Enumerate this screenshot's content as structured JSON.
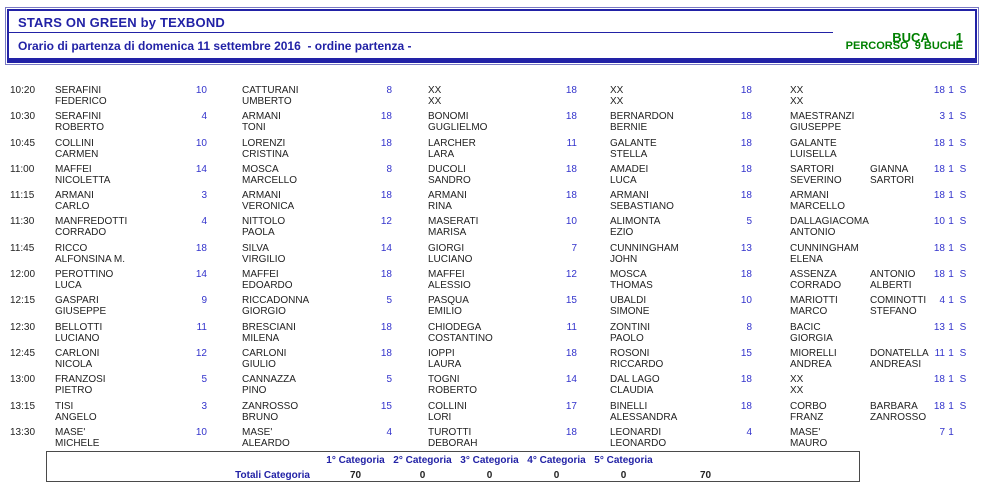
{
  "header": {
    "title": "STARS ON GREEN by TEXBOND",
    "subtitle": "Orario di partenza di domenica 11 settembre 2016  - ordine partenza -",
    "hole_label": "BUCA",
    "hole_number": "1",
    "course_label": "PERCORSO  9 BUCHE"
  },
  "colors": {
    "navy_text": "#2222a6",
    "green_text": "#008000",
    "handicap_blue": "#3333cc",
    "border_navy": "#2222a6"
  },
  "rows": [
    {
      "time": "10:20",
      "players": [
        {
          "s": "SERAFINI",
          "f": "FEDERICO",
          "h": "10"
        },
        {
          "s": "CATTURANI",
          "f": "UMBERTO",
          "h": "8"
        },
        {
          "s": "XX",
          "f": "XX",
          "h": "18"
        },
        {
          "s": "XX",
          "f": "XX",
          "h": "18"
        },
        {
          "s": "XX",
          "f": "XX",
          "h": "18"
        }
      ],
      "m1": "",
      "m2": "",
      "f1": "1",
      "f2": "S"
    },
    {
      "time": "10:30",
      "players": [
        {
          "s": "SERAFINI",
          "f": "ROBERTO",
          "h": "4"
        },
        {
          "s": "ARMANI",
          "f": "TONI",
          "h": "18"
        },
        {
          "s": "BONOMI",
          "f": "GUGLIELMO",
          "h": "18"
        },
        {
          "s": "BERNARDON",
          "f": "BERNIE",
          "h": "18"
        },
        {
          "s": "MAESTRANZI",
          "f": "GIUSEPPE",
          "h": "3"
        }
      ],
      "m1": "",
      "m2": "",
      "f1": "1",
      "f2": "S"
    },
    {
      "time": "10:45",
      "players": [
        {
          "s": "COLLINI",
          "f": "CARMEN",
          "h": "10"
        },
        {
          "s": "LORENZI",
          "f": "CRISTINA",
          "h": "18"
        },
        {
          "s": "LARCHER",
          "f": "LARA",
          "h": "11"
        },
        {
          "s": "GALANTE",
          "f": "STELLA",
          "h": "18"
        },
        {
          "s": "GALANTE",
          "f": "LUISELLA",
          "h": "18"
        }
      ],
      "m1": "",
      "m2": "",
      "f1": "1",
      "f2": "S"
    },
    {
      "time": "11:00",
      "players": [
        {
          "s": "MAFFEI",
          "f": "NICOLETTA",
          "h": "14"
        },
        {
          "s": "MOSCA",
          "f": "MARCELLO",
          "h": "8"
        },
        {
          "s": "DUCOLI",
          "f": "SANDRO",
          "h": "18"
        },
        {
          "s": "AMADEI",
          "f": "LUCA",
          "h": "18"
        },
        {
          "s": "SARTORI",
          "f": "SEVERINO",
          "h": "18"
        }
      ],
      "m1": "GIANNA",
      "m2": "SARTORI",
      "f1": "1",
      "f2": "S"
    },
    {
      "time": "11:15",
      "players": [
        {
          "s": "ARMANI",
          "f": "CARLO",
          "h": "3"
        },
        {
          "s": "ARMANI",
          "f": "VERONICA",
          "h": "18"
        },
        {
          "s": "ARMANI",
          "f": "RINA",
          "h": "18"
        },
        {
          "s": "ARMANI",
          "f": "SEBASTIANO",
          "h": "18"
        },
        {
          "s": "ARMANI",
          "f": "MARCELLO",
          "h": "18"
        }
      ],
      "m1": "",
      "m2": "",
      "f1": "1",
      "f2": "S"
    },
    {
      "time": "11:30",
      "players": [
        {
          "s": "MANFREDOTTI",
          "f": "CORRADO",
          "h": "4"
        },
        {
          "s": "NITTOLO",
          "f": "PAOLA",
          "h": "12"
        },
        {
          "s": "MASERATI",
          "f": "MARISA",
          "h": "10"
        },
        {
          "s": "ALIMONTA",
          "f": "EZIO",
          "h": "5"
        },
        {
          "s": "DALLAGIACOMA",
          "f": "ANTONIO",
          "h": "10"
        }
      ],
      "m1": "",
      "m2": "",
      "f1": "1",
      "f2": "S"
    },
    {
      "time": "11:45",
      "players": [
        {
          "s": "RICCO",
          "f": "ALFONSINA M.",
          "h": "18"
        },
        {
          "s": "SILVA",
          "f": "VIRGILIO",
          "h": "14"
        },
        {
          "s": "GIORGI",
          "f": "LUCIANO",
          "h": "7"
        },
        {
          "s": "CUNNINGHAM",
          "f": "JOHN",
          "h": "13"
        },
        {
          "s": "CUNNINGHAM",
          "f": "ELENA",
          "h": "18"
        }
      ],
      "m1": "",
      "m2": "",
      "f1": "1",
      "f2": "S"
    },
    {
      "time": "12:00",
      "players": [
        {
          "s": "PEROTTINO",
          "f": "LUCA",
          "h": "14"
        },
        {
          "s": "MAFFEI",
          "f": "EDOARDO",
          "h": "18"
        },
        {
          "s": "MAFFEI",
          "f": "ALESSIO",
          "h": "12"
        },
        {
          "s": "MOSCA",
          "f": "THOMAS",
          "h": "18"
        },
        {
          "s": "ASSENZA",
          "f": "CORRADO",
          "h": "18"
        }
      ],
      "m1": "ANTONIO",
      "m2": "ALBERTI",
      "f1": "1",
      "f2": "S"
    },
    {
      "time": "12:15",
      "players": [
        {
          "s": "GASPARI",
          "f": "GIUSEPPE",
          "h": "9"
        },
        {
          "s": "RICCADONNA",
          "f": "GIORGIO",
          "h": "5"
        },
        {
          "s": "PASQUA",
          "f": "EMILIO",
          "h": "15"
        },
        {
          "s": "UBALDI",
          "f": "SIMONE",
          "h": "10"
        },
        {
          "s": "MARIOTTI",
          "f": "MARCO",
          "h": "4"
        }
      ],
      "m1": "COMINOTTI",
      "m2": "STEFANO",
      "f1": "1",
      "f2": "S"
    },
    {
      "time": "12:30",
      "players": [
        {
          "s": "BELLOTTI",
          "f": "LUCIANO",
          "h": "11"
        },
        {
          "s": "BRESCIANI",
          "f": "MILENA",
          "h": "18"
        },
        {
          "s": "CHIODEGA",
          "f": "COSTANTINO",
          "h": "11"
        },
        {
          "s": "ZONTINI",
          "f": "PAOLO",
          "h": "8"
        },
        {
          "s": "BACIC",
          "f": "GIORGIA",
          "h": "13"
        }
      ],
      "m1": "",
      "m2": "",
      "f1": "1",
      "f2": "S"
    },
    {
      "time": "12:45",
      "players": [
        {
          "s": "CARLONI",
          "f": "NICOLA",
          "h": "12"
        },
        {
          "s": "CARLONI",
          "f": "GIULIO",
          "h": "18"
        },
        {
          "s": "IOPPI",
          "f": "LAURA",
          "h": "18"
        },
        {
          "s": "ROSONI",
          "f": "RICCARDO",
          "h": "15"
        },
        {
          "s": "MIORELLI",
          "f": "ANDREA",
          "h": "11"
        }
      ],
      "m1": "DONATELLA",
      "m2": "ANDREASI",
      "f1": "1",
      "f2": "S"
    },
    {
      "time": "13:00",
      "players": [
        {
          "s": "FRANZOSI",
          "f": "PIETRO",
          "h": "5"
        },
        {
          "s": "CANNAZZA",
          "f": "PINO",
          "h": "5"
        },
        {
          "s": "TOGNI",
          "f": "ROBERTO",
          "h": "14"
        },
        {
          "s": "DAL LAGO",
          "f": "CLAUDIA",
          "h": "18"
        },
        {
          "s": "XX",
          "f": "XX",
          "h": "18"
        }
      ],
      "m1": "",
      "m2": "",
      "f1": "1",
      "f2": "S"
    },
    {
      "time": "13:15",
      "players": [
        {
          "s": "TISI",
          "f": "ANGELO",
          "h": "3"
        },
        {
          "s": "ZANROSSO",
          "f": "BRUNO",
          "h": "15"
        },
        {
          "s": "COLLINI",
          "f": "LORI",
          "h": "17"
        },
        {
          "s": "BINELLI",
          "f": "ALESSANDRA",
          "h": "18"
        },
        {
          "s": "CORBO",
          "f": "FRANZ",
          "h": "18"
        }
      ],
      "m1": "BARBARA",
      "m2": "ZANROSSO",
      "f1": "1",
      "f2": "S"
    },
    {
      "time": "13:30",
      "players": [
        {
          "s": "MASE'",
          "f": "MICHELE",
          "h": "10"
        },
        {
          "s": "MASE'",
          "f": "ALEARDO",
          "h": "4"
        },
        {
          "s": "TUROTTI",
          "f": "DEBORAH",
          "h": "18"
        },
        {
          "s": "LEONARDI",
          "f": "LEONARDO",
          "h": "4"
        },
        {
          "s": "MASE'",
          "f": "MAURO",
          "h": "7"
        }
      ],
      "m1": "",
      "m2": "",
      "f1": "1",
      "f2": ""
    }
  ],
  "totals": {
    "label": "Totali Categoria",
    "headers": [
      "1° Categoria",
      "2° Categoria",
      "3° Categoria",
      "4° Categoria",
      "5° Categoria"
    ],
    "values": [
      "70",
      "0",
      "0",
      "0",
      "0"
    ],
    "grand_total": "70"
  }
}
